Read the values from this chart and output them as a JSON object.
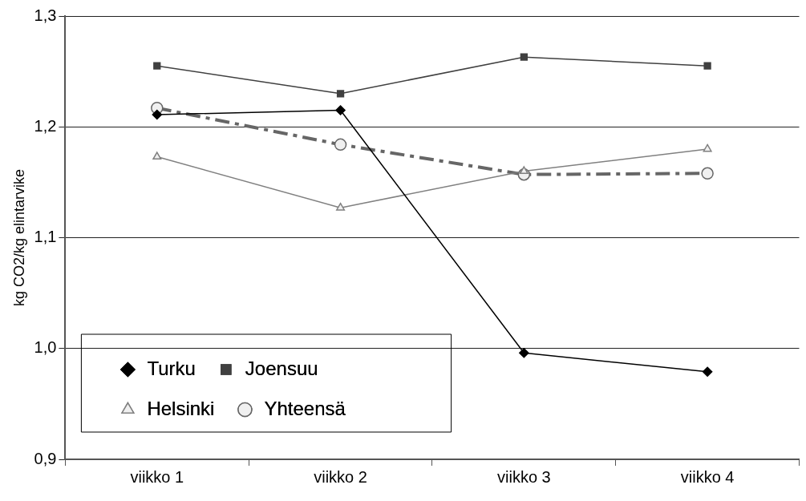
{
  "chart_data": {
    "type": "line",
    "ylabel": "kg CO2/kg elintarvike",
    "categories": [
      "viikko 1",
      "viikko 2",
      "viikko 3",
      "viikko 4"
    ],
    "series": [
      {
        "name": "Turku",
        "color": "#000000",
        "marker": "diamond",
        "line_style": "solid",
        "values": [
          1.211,
          1.215,
          0.996,
          0.979
        ]
      },
      {
        "name": "Joensuu",
        "color": "#404040",
        "marker": "square",
        "line_style": "solid",
        "values": [
          1.255,
          1.23,
          1.263,
          1.255
        ]
      },
      {
        "name": "Helsinki",
        "color": "#808080",
        "marker": "triangle",
        "line_style": "solid",
        "values": [
          1.173,
          1.127,
          1.16,
          1.18
        ]
      },
      {
        "name": "Yhteensä",
        "color": "#666666",
        "marker": "circle",
        "line_style": "dashed",
        "values": [
          1.217,
          1.184,
          1.157,
          1.158
        ]
      }
    ],
    "ylim": [
      0.9,
      1.3
    ],
    "yticks": [
      {
        "value": 0.9,
        "label": "0,9"
      },
      {
        "value": 1.0,
        "label": "1,0"
      },
      {
        "value": 1.1,
        "label": "1,1"
      },
      {
        "value": 1.2,
        "label": "1,2"
      },
      {
        "value": 1.3,
        "label": "1,3"
      }
    ],
    "grid": "y",
    "legend": "bottom left"
  }
}
